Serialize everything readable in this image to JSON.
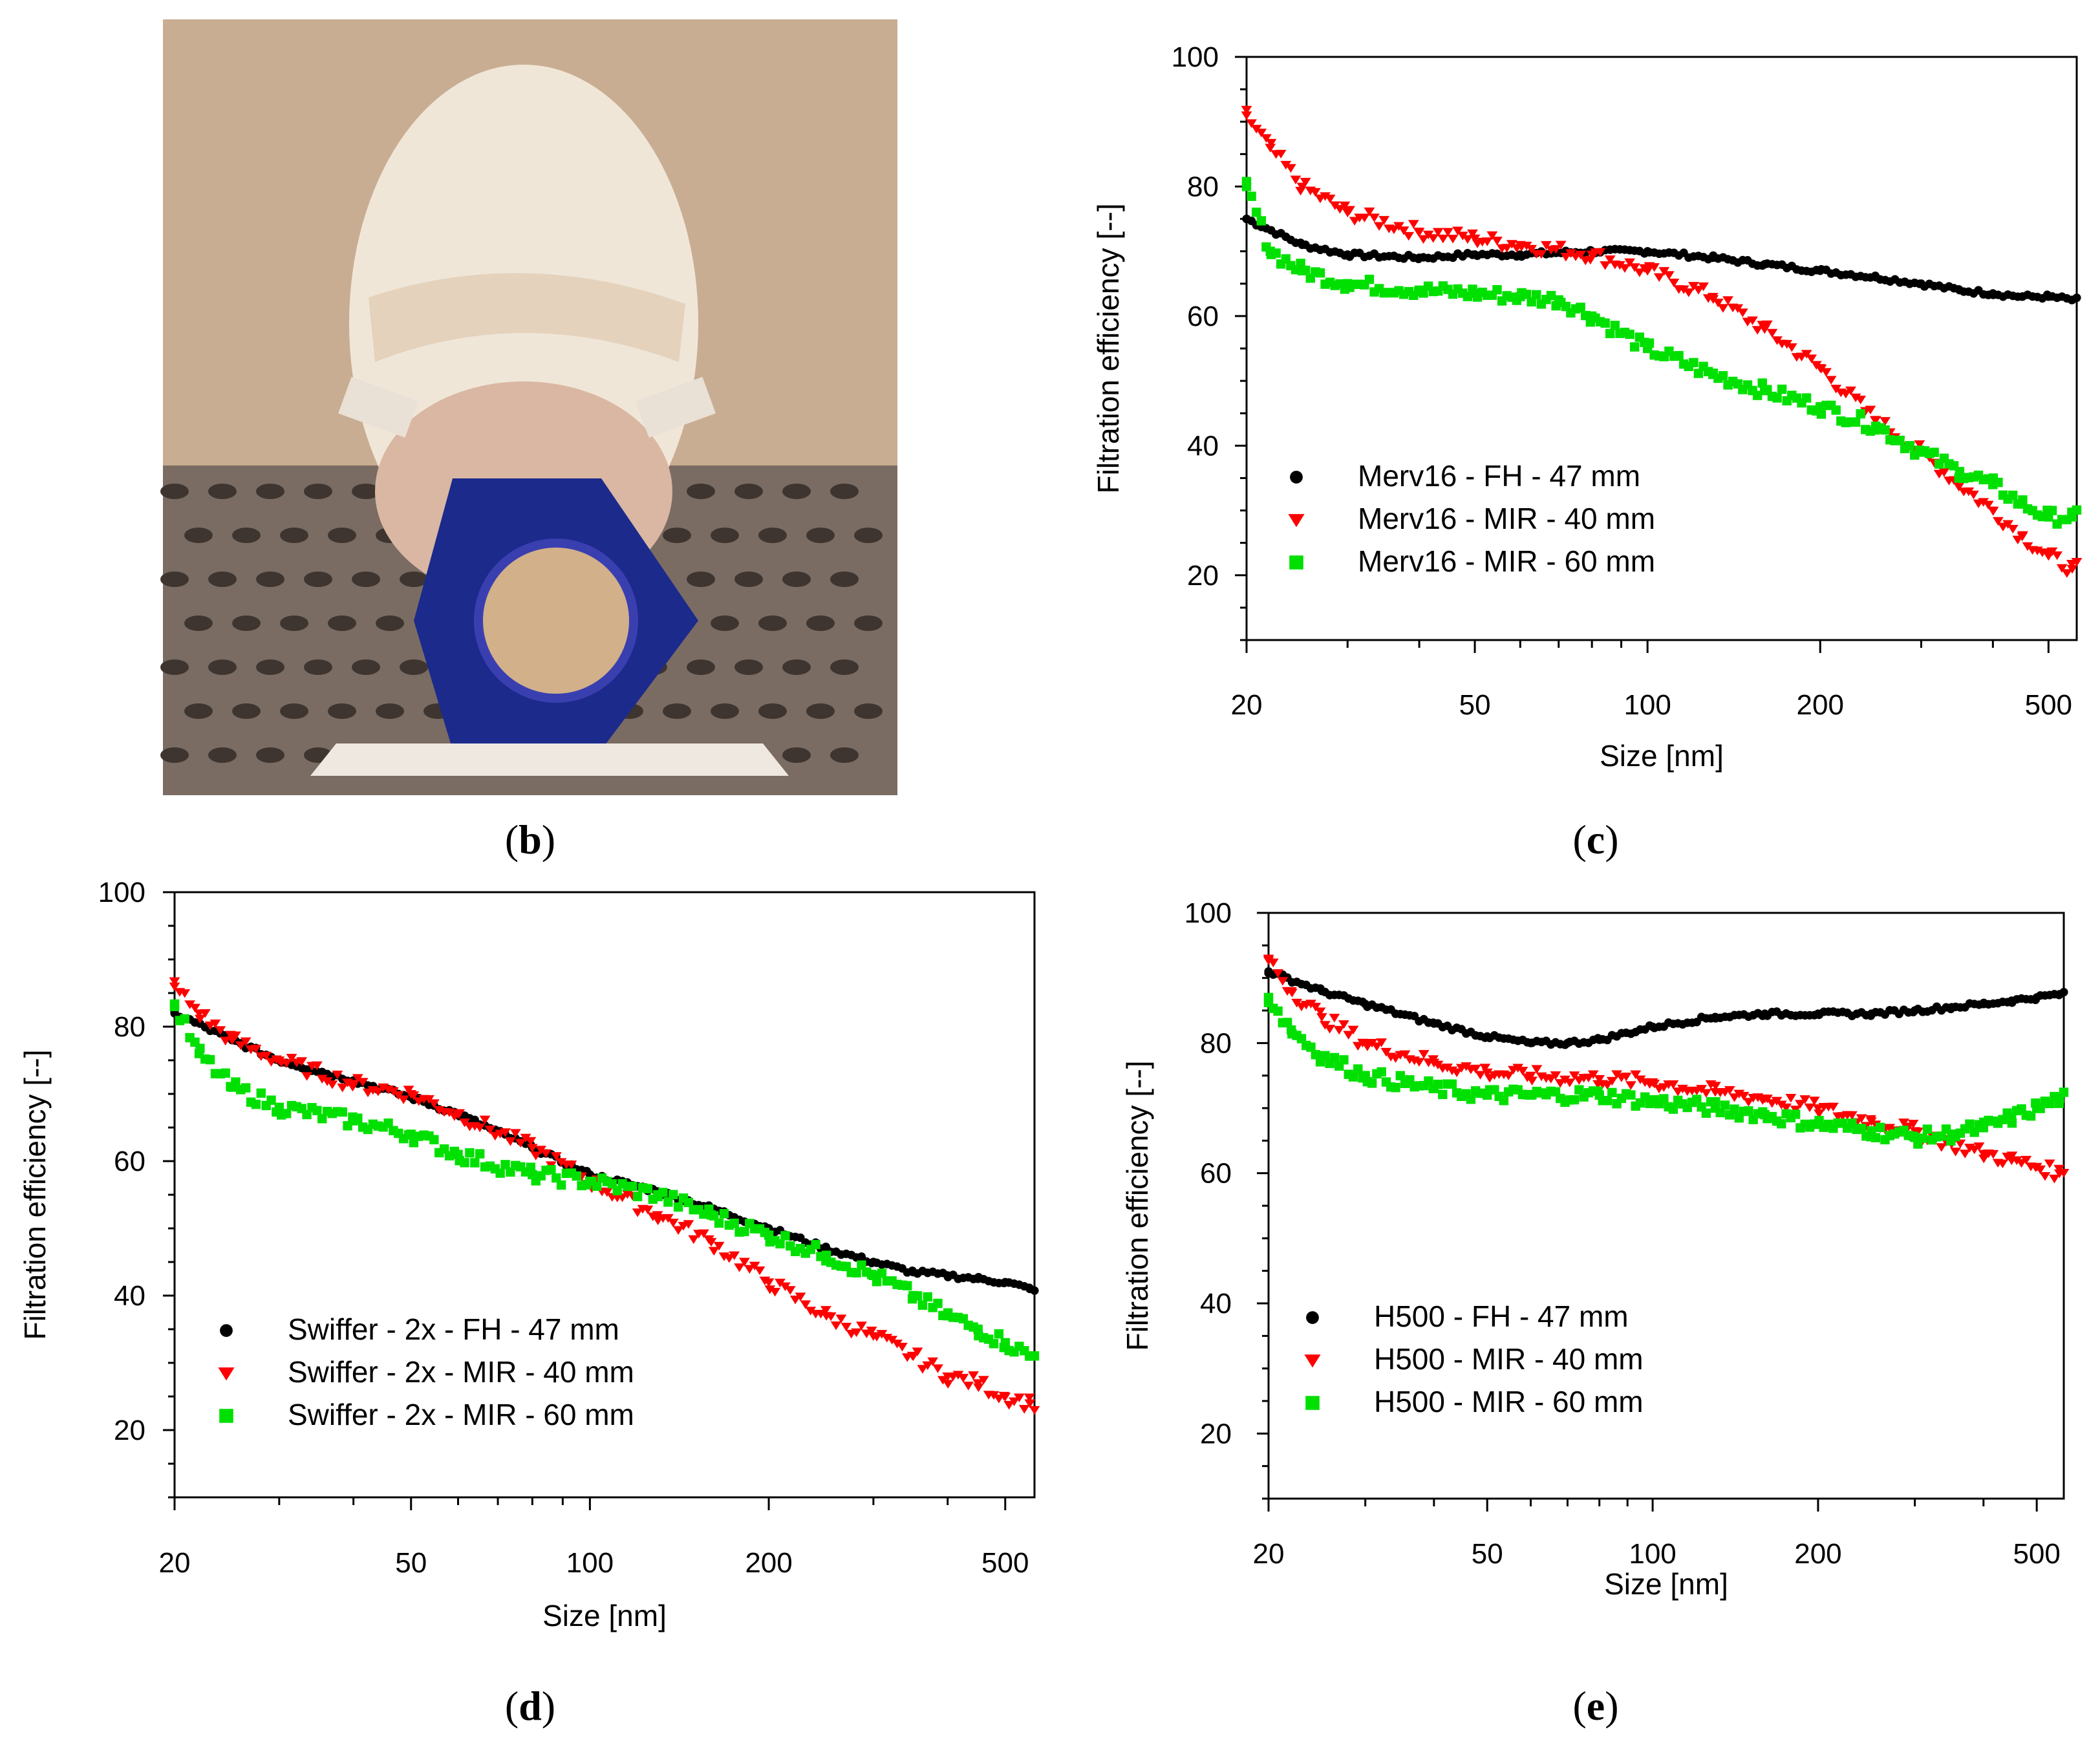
{
  "figure": {
    "panel_labels": [
      {
        "id": "b",
        "open": "(",
        "letter": "b",
        "close": ")"
      },
      {
        "id": "c",
        "open": "(",
        "letter": "c",
        "close": ")"
      },
      {
        "id": "d",
        "open": "(",
        "letter": "d",
        "close": ")"
      },
      {
        "id": "e",
        "open": "(",
        "letter": "e",
        "close": ")"
      }
    ],
    "photo": {
      "description_icon": "mannequin-head-photo"
    },
    "colors": {
      "black": "#000000",
      "red": "#ff0000",
      "green": "#00e000",
      "photo_bg": "#b09880",
      "holder": "#1c2a8c"
    }
  },
  "chart_data": [
    {
      "id": "c",
      "type": "scatter",
      "xscale": "log",
      "xlabel": "Size [nm]",
      "ylabel": "Filtration efficiency [--]",
      "xlim": [
        20,
        560
      ],
      "ylim": [
        10,
        100
      ],
      "xticks": [
        20,
        50,
        100,
        200,
        500
      ],
      "yticks": [
        20,
        40,
        60,
        80,
        100
      ],
      "legend_position": "lower-left",
      "series": [
        {
          "name": "Merv16 - FH - 47 mm",
          "marker": "circle",
          "color": "#000000",
          "x": [
            20,
            25,
            30,
            40,
            50,
            60,
            80,
            100,
            130,
            160,
            200,
            250,
            300,
            350,
            400,
            450,
            500,
            550
          ],
          "y": [
            75,
            71,
            69.5,
            69,
            69.5,
            69.5,
            70,
            70,
            69,
            68,
            67,
            66,
            65,
            64,
            63.5,
            63,
            63,
            62.5
          ]
        },
        {
          "name": "Merv16 - MIR - 40 mm",
          "marker": "triangle-down",
          "color": "#ff0000",
          "x": [
            20,
            22,
            25,
            30,
            40,
            50,
            60,
            80,
            100,
            130,
            160,
            200,
            250,
            300,
            350,
            400,
            450,
            500,
            550
          ],
          "y": [
            91,
            86,
            80,
            76,
            73,
            72,
            71,
            69.5,
            67,
            63,
            58,
            52,
            44,
            39,
            34,
            30,
            26,
            23,
            21
          ]
        },
        {
          "name": "Merv16 - MIR - 60 mm",
          "marker": "square",
          "color": "#00e000",
          "x": [
            20,
            22,
            25,
            30,
            40,
            50,
            60,
            70,
            80,
            100,
            130,
            160,
            200,
            250,
            300,
            350,
            400,
            450,
            500,
            550
          ],
          "y": [
            80,
            70,
            67,
            65,
            64,
            63.5,
            63,
            62.5,
            60,
            55,
            51,
            48.5,
            46,
            43,
            39,
            36,
            34,
            31,
            29,
            29
          ]
        }
      ]
    },
    {
      "id": "d",
      "type": "scatter",
      "xscale": "log",
      "xlabel": "Size [nm]",
      "ylabel": "Filtration efficiency [--]",
      "xlim": [
        20,
        560
      ],
      "ylim": [
        10,
        100
      ],
      "xticks": [
        20,
        50,
        100,
        200,
        500
      ],
      "yticks": [
        20,
        40,
        60,
        80,
        100
      ],
      "legend_position": "lower-left",
      "series": [
        {
          "name": "Swiffer - 2x - FH - 47 mm",
          "marker": "circle",
          "color": "#000000",
          "x": [
            20,
            25,
            30,
            40,
            50,
            60,
            80,
            100,
            130,
            160,
            200,
            250,
            300,
            350,
            400,
            450,
            500,
            550
          ],
          "y": [
            82,
            78,
            75,
            72,
            69.5,
            67,
            62,
            58,
            55.5,
            53,
            50,
            47,
            45,
            43.5,
            43,
            42.5,
            42,
            41
          ]
        },
        {
          "name": "Swiffer - 2x - MIR - 40 mm",
          "marker": "triangle-down",
          "color": "#ff0000",
          "x": [
            20,
            22,
            25,
            30,
            40,
            50,
            60,
            80,
            100,
            130,
            160,
            200,
            250,
            300,
            350,
            400,
            450,
            500,
            550
          ],
          "y": [
            86,
            82,
            78,
            75,
            71.5,
            70,
            67,
            62,
            57,
            52,
            48,
            42,
            37,
            34,
            31,
            28,
            27,
            25,
            24
          ]
        },
        {
          "name": "Swiffer - 2x - MIR - 60 mm",
          "marker": "square",
          "color": "#00e000",
          "x": [
            20,
            22,
            25,
            30,
            40,
            50,
            60,
            80,
            100,
            130,
            160,
            200,
            250,
            300,
            350,
            400,
            450,
            500,
            550
          ],
          "y": [
            83,
            76,
            71,
            68,
            66,
            64,
            61,
            58,
            57,
            55,
            52,
            49,
            46,
            43,
            40,
            37,
            35,
            33,
            31
          ]
        }
      ]
    },
    {
      "id": "e",
      "type": "scatter",
      "xscale": "log",
      "xlabel": "Size [nm]",
      "ylabel": "Filtration efficiency [--]",
      "xlim": [
        20,
        560
      ],
      "ylim": [
        10,
        100
      ],
      "xticks": [
        20,
        50,
        100,
        200,
        500
      ],
      "yticks": [
        20,
        40,
        60,
        80,
        100
      ],
      "legend_position": "lower-left",
      "series": [
        {
          "name": "H500 - FH - 47 mm",
          "marker": "circle",
          "color": "#000000",
          "x": [
            20,
            25,
            30,
            40,
            50,
            60,
            70,
            80,
            100,
            130,
            160,
            200,
            250,
            300,
            350,
            400,
            450,
            500,
            550
          ],
          "y": [
            91,
            88,
            86,
            83,
            81,
            80,
            80,
            80.5,
            82.5,
            84,
            84.5,
            84.5,
            84.5,
            85,
            85.5,
            86,
            86.5,
            87,
            87.5
          ]
        },
        {
          "name": "H500 - MIR - 40 mm",
          "marker": "triangle-down",
          "color": "#ff0000",
          "x": [
            20,
            22,
            25,
            30,
            40,
            50,
            60,
            80,
            100,
            130,
            160,
            200,
            250,
            300,
            350,
            400,
            450,
            500,
            550
          ],
          "y": [
            93,
            88,
            84,
            80,
            77,
            75.5,
            75,
            74.5,
            74,
            72.5,
            71.5,
            70,
            68,
            66.5,
            64.5,
            63,
            62,
            61,
            60
          ]
        },
        {
          "name": "H500 - MIR - 60 mm",
          "marker": "square",
          "color": "#00e000",
          "x": [
            20,
            22,
            25,
            30,
            40,
            50,
            60,
            80,
            100,
            130,
            160,
            200,
            250,
            300,
            350,
            400,
            450,
            500,
            550
          ],
          "y": [
            87,
            82,
            78,
            75,
            73,
            72,
            72,
            72,
            71,
            70,
            69,
            67.5,
            66.5,
            65.5,
            66,
            67,
            68.5,
            70,
            71.5
          ]
        }
      ]
    }
  ]
}
